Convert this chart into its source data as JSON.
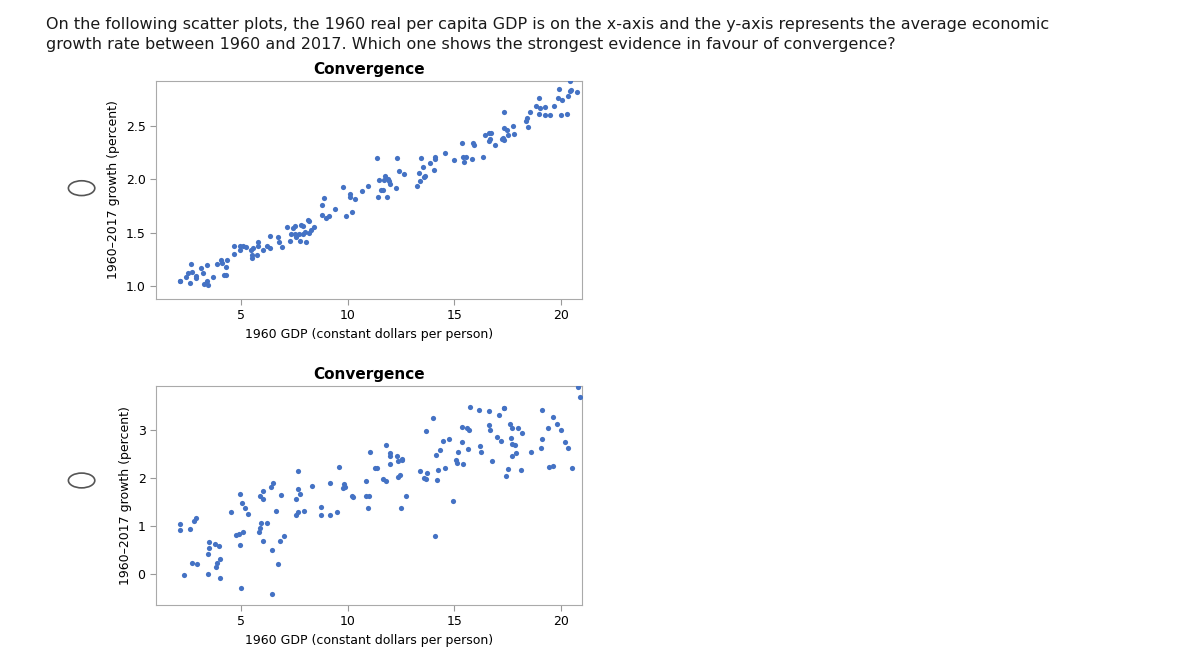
{
  "title_text_line1": "On the following scatter plots, the 1960 real per capita GDP is on the x-axis and the y-axis represents the average economic",
  "title_text_line2": "growth rate between 1960 and 2017. Which one shows the strongest evidence in favour of convergence?",
  "plot1": {
    "title": "Convergence",
    "xlabel": "1960 GDP (constant dollars per person)",
    "ylabel": "1960–2017 growth (percent)",
    "xlim": [
      1,
      21
    ],
    "ylim": [
      0.88,
      2.92
    ],
    "yticks": [
      1.0,
      1.5,
      2.0,
      2.5
    ],
    "xticks": [
      5,
      10,
      15,
      20
    ],
    "dot_color": "#4472C4",
    "dot_size": 14,
    "seed": 42,
    "n_points": 150,
    "x_range": [
      2,
      21
    ],
    "y_range": [
      1.0,
      2.8
    ],
    "noise": 0.08
  },
  "plot2": {
    "title": "Convergence",
    "xlabel": "1960 GDP (constant dollars per person)",
    "ylabel": "1960–2017 growth (percent)",
    "xlim": [
      1,
      21
    ],
    "ylim": [
      -0.65,
      3.9
    ],
    "yticks": [
      0,
      1,
      2,
      3
    ],
    "xticks": [
      5,
      10,
      15,
      20
    ],
    "dot_color": "#4472C4",
    "dot_size": 14,
    "seed": 99,
    "n_points": 150,
    "x_range": [
      2,
      21
    ],
    "y_range": [
      0.5,
      3.4
    ],
    "noise": 0.52
  },
  "background_color": "#ffffff",
  "title_fontsize": 11.5,
  "axis_label_fontsize": 9,
  "tick_fontsize": 9,
  "plot_title_fontsize": 11
}
